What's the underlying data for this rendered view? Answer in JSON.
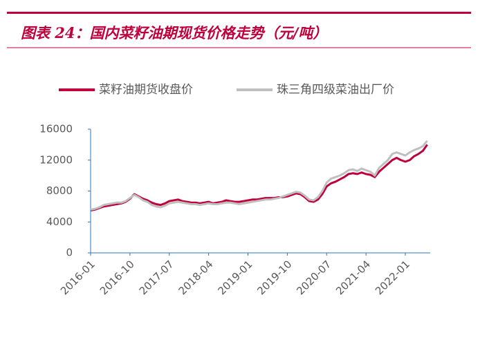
{
  "chart_data": {
    "type": "line",
    "title": "图表 24：国内菜籽油期现货价格走势（元/吨）",
    "x": [
      "2016-01",
      "2016-02",
      "2016-03",
      "2016-04",
      "2016-05",
      "2016-06",
      "2016-07",
      "2016-08",
      "2016-09",
      "2016-10",
      "2016-11",
      "2016-12",
      "2017-01",
      "2017-02",
      "2017-03",
      "2017-04",
      "2017-05",
      "2017-06",
      "2017-07",
      "2017-08",
      "2017-09",
      "2017-10",
      "2017-11",
      "2017-12",
      "2018-01",
      "2018-02",
      "2018-03",
      "2018-04",
      "2018-05",
      "2018-06",
      "2018-07",
      "2018-08",
      "2018-09",
      "2018-10",
      "2018-11",
      "2018-12",
      "2019-01",
      "2019-02",
      "2019-03",
      "2019-04",
      "2019-05",
      "2019-06",
      "2019-07",
      "2019-08",
      "2019-09",
      "2019-10",
      "2019-11",
      "2019-12",
      "2020-01",
      "2020-02",
      "2020-03",
      "2020-04",
      "2020-05",
      "2020-06",
      "2020-07",
      "2020-08",
      "2020-09",
      "2020-10",
      "2020-11",
      "2020-12",
      "2021-01",
      "2021-02",
      "2021-03",
      "2021-04",
      "2021-05",
      "2021-06",
      "2021-07",
      "2021-08",
      "2021-09",
      "2021-10",
      "2021-11",
      "2021-12",
      "2022-01",
      "2022-02",
      "2022-03",
      "2022-04",
      "2022-05",
      "2022-06"
    ],
    "series": [
      {
        "name": "菜籽油期货收盘价",
        "color": "#c0003c",
        "values": [
          5500,
          5600,
          5800,
          6000,
          6100,
          6200,
          6300,
          6400,
          6600,
          7000,
          7600,
          7300,
          7000,
          6800,
          6500,
          6300,
          6200,
          6400,
          6700,
          6800,
          6900,
          6700,
          6600,
          6500,
          6500,
          6400,
          6500,
          6600,
          6400,
          6500,
          6600,
          6800,
          6700,
          6600,
          6600,
          6700,
          6800,
          6900,
          6900,
          7000,
          7100,
          7100,
          7100,
          7200,
          7200,
          7300,
          7500,
          7700,
          7600,
          7200,
          6700,
          6600,
          6900,
          7600,
          8600,
          9000,
          9200,
          9500,
          9800,
          10200,
          10300,
          10200,
          10400,
          10200,
          10100,
          9800,
          10500,
          11000,
          11500,
          12000,
          12300,
          12000,
          11800,
          12000,
          12500,
          12800,
          13200,
          14000
        ]
      },
      {
        "name": "珠三角四级菜油出厂价",
        "color": "#bfbfbf",
        "values": [
          5600,
          5700,
          5900,
          6200,
          6300,
          6400,
          6500,
          6500,
          6700,
          7100,
          7500,
          7200,
          6800,
          6600,
          6200,
          6000,
          5900,
          6100,
          6400,
          6500,
          6600,
          6500,
          6400,
          6300,
          6300,
          6200,
          6300,
          6400,
          6300,
          6300,
          6400,
          6500,
          6500,
          6400,
          6300,
          6400,
          6500,
          6600,
          6700,
          6800,
          6900,
          6900,
          7000,
          7100,
          7300,
          7500,
          7700,
          7900,
          7800,
          7400,
          6900,
          6800,
          7200,
          8000,
          9100,
          9600,
          9800,
          10000,
          10300,
          10700,
          10800,
          10600,
          10900,
          10700,
          10500,
          10000,
          11000,
          11500,
          12000,
          12800,
          13000,
          12800,
          12600,
          13000,
          13300,
          13500,
          13800,
          14500
        ]
      }
    ],
    "xticks": [
      "2016-01",
      "2016-10",
      "2017-07",
      "2018-04",
      "2019-01",
      "2019-10",
      "2020-07",
      "2021-04",
      "2022-01"
    ],
    "ylim": [
      0,
      16000
    ],
    "yticks": [
      0,
      4000,
      8000,
      12000,
      16000
    ]
  }
}
